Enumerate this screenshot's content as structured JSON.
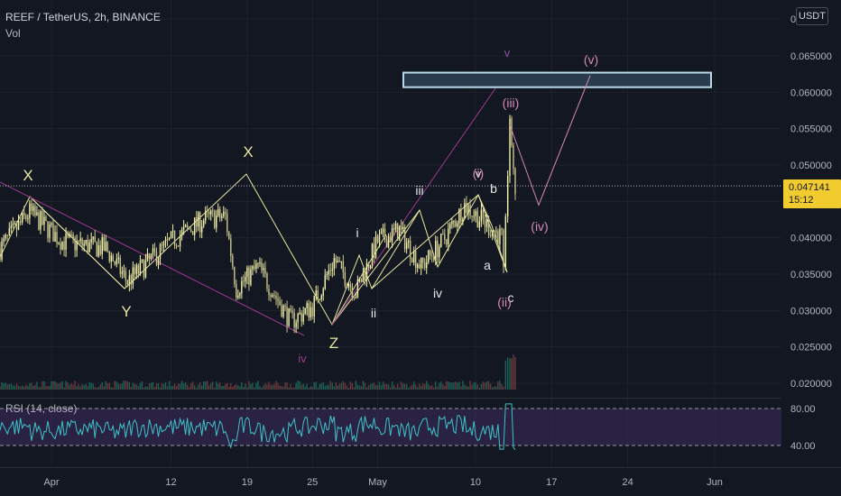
{
  "header": {
    "symbol_line": "REEF / TetherUS, 2h, BINANCE",
    "volume_label": "Vol",
    "currency_button": "USDT"
  },
  "rsi": {
    "label": "RSI (14, close)",
    "levels": [
      "80.00",
      "40.00"
    ]
  },
  "last_price": {
    "value": "0.047141",
    "countdown": "15:12"
  },
  "colors": {
    "background": "#131722",
    "bull": "#f2f2a8",
    "bear": "#c8c48a",
    "pattern_line": "#e8e8a0",
    "channel_line": "#9c3a8c",
    "wave_v_label": "#8b4fa8",
    "wave_roman_label": "#d48ab4",
    "target_box": "#b9d9ea",
    "rsi_line": "#3ec3c8",
    "rsi_band": "#3b2a5a",
    "price_tag": "#f2cc2f"
  },
  "chart_data": {
    "type": "candlestick",
    "title": "REEF / TetherUS, 2h, BINANCE",
    "y_axis": {
      "scale": "linear",
      "ticks": [
        "0",
        "0.065000",
        "0.060000",
        "0.055000",
        "0.050000",
        "0.045000",
        "0.040000",
        "0.035000",
        "0.030000",
        "0.025000",
        "0.020000"
      ],
      "range": [
        0.019,
        0.071
      ]
    },
    "x_axis": {
      "ticks": [
        "Apr",
        "12",
        "19",
        "25",
        "May",
        "10",
        "17",
        "24",
        "Jun"
      ]
    },
    "price_path_keypoints": [
      {
        "date": "Mar 28",
        "price": 0.0385
      },
      {
        "date": "Mar 30",
        "price": 0.0435
      },
      {
        "date": "Apr 2",
        "price": 0.0395
      },
      {
        "date": "Apr 6",
        "price": 0.0385
      },
      {
        "date": "Apr 8",
        "price": 0.034
      },
      {
        "date": "Apr 12",
        "price": 0.0395
      },
      {
        "date": "Apr 15",
        "price": 0.0425
      },
      {
        "date": "Apr 17",
        "price": 0.043
      },
      {
        "date": "Apr 18",
        "price": 0.033
      },
      {
        "date": "Apr 20",
        "price": 0.036
      },
      {
        "date": "Apr 23",
        "price": 0.0285
      },
      {
        "date": "Apr 25",
        "price": 0.0305
      },
      {
        "date": "Apr 27",
        "price": 0.037
      },
      {
        "date": "Apr 29",
        "price": 0.0325
      },
      {
        "date": "May 1",
        "price": 0.0395
      },
      {
        "date": "May 3",
        "price": 0.041
      },
      {
        "date": "May 5",
        "price": 0.036
      },
      {
        "date": "May 7",
        "price": 0.0395
      },
      {
        "date": "May 9",
        "price": 0.0445
      },
      {
        "date": "May 10",
        "price": 0.04
      },
      {
        "date": "May 11",
        "price": 0.0345
      },
      {
        "date": "May 11",
        "price": 0.0555
      },
      {
        "date": "May 11",
        "price": 0.0471
      }
    ],
    "last_price": 0.047141,
    "target_zone": {
      "low": 0.0607,
      "high": 0.0627
    },
    "projected_path": [
      {
        "date": "May 11",
        "price": 0.0555
      },
      {
        "date": "May 13",
        "price": 0.0445
      },
      {
        "date": "May 16",
        "price": 0.0623
      }
    ],
    "wave_labels": [
      "X",
      "Y",
      "X",
      "Z",
      "iv",
      "i",
      "ii",
      "iii",
      "iv",
      "v",
      "(i)",
      "b",
      "a",
      "c",
      "(ii)",
      "(iii)",
      "(iv)",
      "(v)",
      "v"
    ],
    "rsi": {
      "period": 14,
      "source": "close",
      "upper": 80,
      "lower": 40
    }
  }
}
